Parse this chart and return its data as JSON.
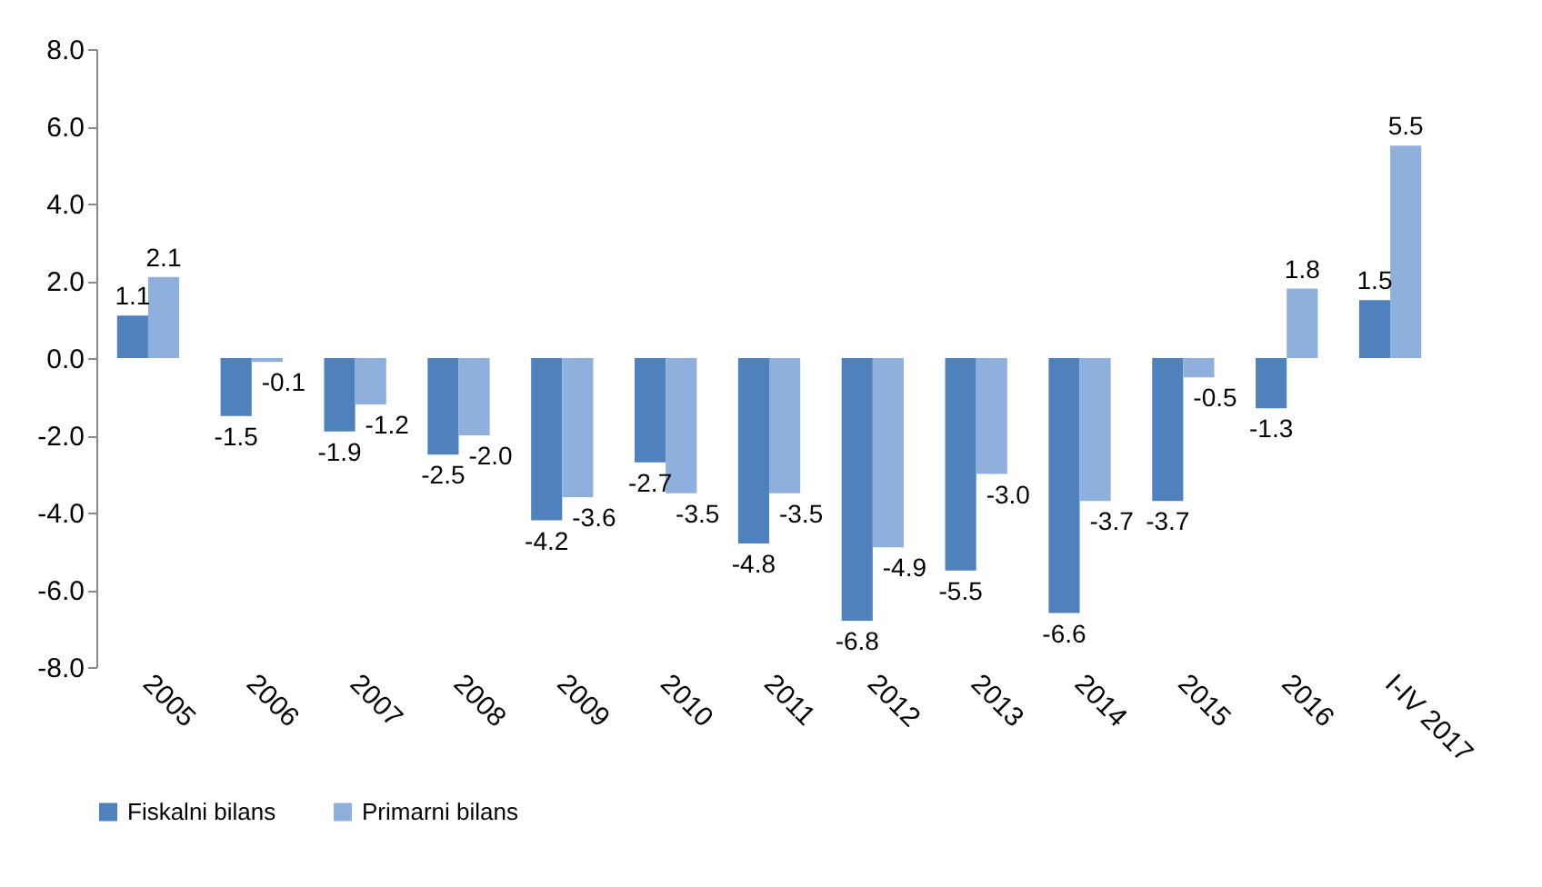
{
  "chart_data": {
    "type": "bar",
    "categories": [
      "2005",
      "2006",
      "2007",
      "2008",
      "2009",
      "2010",
      "2011",
      "2012",
      "2013",
      "2014",
      "2015",
      "2016",
      "I-IV 2017"
    ],
    "series": [
      {
        "name": "Fiskalni bilans",
        "color": "#4f81bd",
        "values": [
          1.1,
          -1.5,
          -1.9,
          -2.5,
          -4.2,
          -2.7,
          -4.8,
          -6.8,
          -5.5,
          -6.6,
          -3.7,
          -1.3,
          1.5
        ],
        "value_labels": [
          "1.1",
          "-1.5",
          "-1.9",
          "-2.5",
          "-4.2",
          "-2.7",
          "-4.8",
          "-6.8",
          "-5.5",
          "-6.6",
          "-3.7",
          "-1.3",
          "1.5"
        ]
      },
      {
        "name": "Primarni bilans",
        "color": "#8fb0dc",
        "values": [
          2.1,
          -0.1,
          -1.2,
          -2.0,
          -3.6,
          -3.5,
          -3.5,
          -4.9,
          -3.0,
          -3.7,
          -0.5,
          1.8,
          5.5
        ],
        "value_labels": [
          "2.1",
          "-0.1",
          "-1.2",
          "-2.0",
          "-3.6",
          "-3.5",
          "-3.5",
          "-4.9",
          "-3.0",
          "-3.7",
          "-0.5",
          "1.8",
          "5.5"
        ]
      }
    ],
    "ylim": [
      -8,
      8
    ],
    "yticks": [
      {
        "value": -8,
        "label": "-8.0"
      },
      {
        "value": -6,
        "label": "-6.0"
      },
      {
        "value": -4,
        "label": "-4.0"
      },
      {
        "value": -2,
        "label": "-2.0"
      },
      {
        "value": 0,
        "label": "0.0"
      },
      {
        "value": 2,
        "label": "2.0"
      },
      {
        "value": 4,
        "label": "4.0"
      },
      {
        "value": 6,
        "label": "6.0"
      },
      {
        "value": 8,
        "label": "8.0"
      }
    ],
    "grid": false,
    "legend": "bottom"
  }
}
